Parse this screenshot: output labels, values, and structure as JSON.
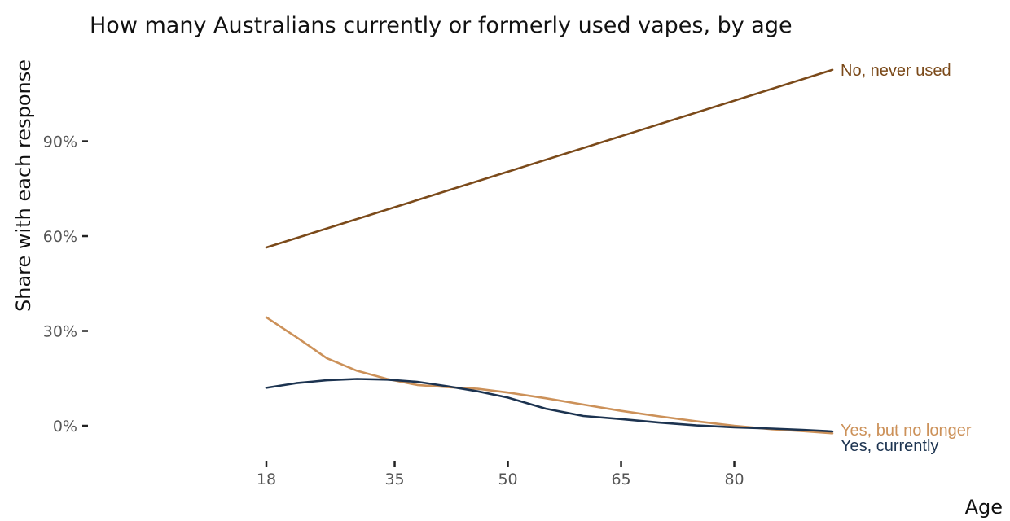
{
  "chart_data": {
    "type": "line",
    "title": "How many Australians currently or formerly used vapes, by age",
    "xlabel": "Age",
    "ylabel": "Share with each response",
    "xticks": [
      18,
      35,
      50,
      65,
      80
    ],
    "yticks": [
      "0%",
      "30%",
      "60%",
      "90%"
    ],
    "xlim": [
      18,
      93
    ],
    "ylim": [
      -0.07,
      1.16
    ],
    "grid": false,
    "legend": "direct labels at line ends",
    "series": [
      {
        "name": "No, never used",
        "color": "#7B4A1A",
        "points": [
          [
            18,
            0.564
          ],
          [
            93,
            1.126
          ]
        ]
      },
      {
        "name": "Yes, but no longer",
        "color": "#CC9159",
        "points": [
          [
            18,
            0.343
          ],
          [
            22,
            0.28
          ],
          [
            26,
            0.214
          ],
          [
            30,
            0.174
          ],
          [
            34,
            0.148
          ],
          [
            38,
            0.129
          ],
          [
            42,
            0.122
          ],
          [
            46,
            0.117
          ],
          [
            50,
            0.105
          ],
          [
            55,
            0.087
          ],
          [
            60,
            0.067
          ],
          [
            65,
            0.047
          ],
          [
            70,
            0.03
          ],
          [
            75,
            0.014
          ],
          [
            80,
            0.0
          ],
          [
            85,
            -0.011
          ],
          [
            89,
            -0.017
          ],
          [
            93,
            -0.024
          ]
        ]
      },
      {
        "name": "Yes, currently",
        "color": "#1C3350",
        "points": [
          [
            18,
            0.12
          ],
          [
            22,
            0.135
          ],
          [
            26,
            0.144
          ],
          [
            30,
            0.148
          ],
          [
            34,
            0.146
          ],
          [
            38,
            0.139
          ],
          [
            42,
            0.125
          ],
          [
            46,
            0.109
          ],
          [
            50,
            0.089
          ],
          [
            55,
            0.054
          ],
          [
            60,
            0.031
          ],
          [
            65,
            0.021
          ],
          [
            70,
            0.01
          ],
          [
            75,
            0.001
          ],
          [
            80,
            -0.005
          ],
          [
            85,
            -0.009
          ],
          [
            89,
            -0.013
          ],
          [
            93,
            -0.018
          ]
        ]
      }
    ]
  }
}
